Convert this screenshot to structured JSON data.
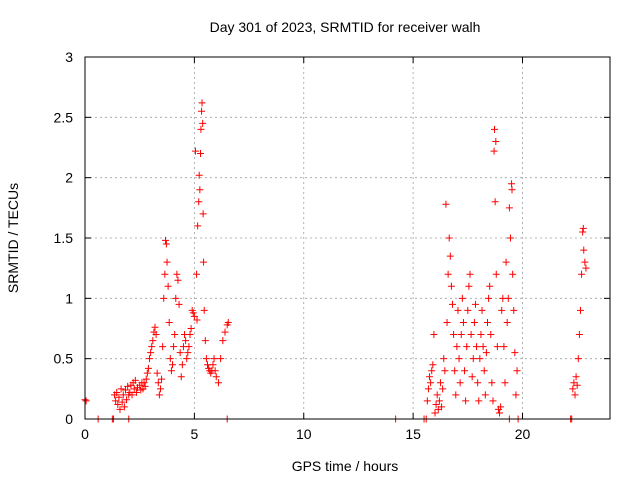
{
  "chart_data": {
    "type": "scatter",
    "title": "Day 301 of 2023, SRMTID for receiver walh",
    "xlabel": "GPS time / hours",
    "ylabel": "SRMTID / TECUs",
    "xlim": [
      0,
      24
    ],
    "ylim": [
      0,
      3
    ],
    "xticks": [
      0,
      5,
      10,
      15,
      20
    ],
    "yticks": [
      0,
      0.5,
      1,
      1.5,
      2,
      2.5,
      3
    ],
    "xtick_labels": [
      "0",
      "5",
      "10",
      "15",
      "20"
    ],
    "ytick_labels": [
      "0",
      "0.5",
      "1",
      "1.5",
      "2",
      "2.5",
      "3"
    ],
    "grid": true,
    "marker": "+",
    "color": "#ff0000",
    "series": [
      {
        "name": "SRMTID",
        "points": [
          [
            0.0,
            0.16
          ],
          [
            0.05,
            0.15
          ],
          [
            0.6,
            0.0
          ],
          [
            1.25,
            0.0
          ],
          [
            1.3,
            0.0
          ],
          [
            1.35,
            0.2
          ],
          [
            1.4,
            0.15
          ],
          [
            1.45,
            0.22
          ],
          [
            1.5,
            0.12
          ],
          [
            1.55,
            0.18
          ],
          [
            1.6,
            0.08
          ],
          [
            1.65,
            0.25
          ],
          [
            1.7,
            0.14
          ],
          [
            1.75,
            0.2
          ],
          [
            1.8,
            0.1
          ],
          [
            1.85,
            0.24
          ],
          [
            1.9,
            0.16
          ],
          [
            1.95,
            0.27
          ],
          [
            2.0,
            0.0
          ],
          [
            2.0,
            0.2
          ],
          [
            2.05,
            0.22
          ],
          [
            2.1,
            0.28
          ],
          [
            2.15,
            0.2
          ],
          [
            2.2,
            0.3
          ],
          [
            2.25,
            0.25
          ],
          [
            2.3,
            0.32
          ],
          [
            2.35,
            0.22
          ],
          [
            2.4,
            0.26
          ],
          [
            2.5,
            0.28
          ],
          [
            2.55,
            0.24
          ],
          [
            2.6,
            0.3
          ],
          [
            2.65,
            0.25
          ],
          [
            2.7,
            0.3
          ],
          [
            2.75,
            0.27
          ],
          [
            2.8,
            0.33
          ],
          [
            2.85,
            0.38
          ],
          [
            2.9,
            0.42
          ],
          [
            2.95,
            0.5
          ],
          [
            3.0,
            0.55
          ],
          [
            3.05,
            0.6
          ],
          [
            3.1,
            0.65
          ],
          [
            3.15,
            0.72
          ],
          [
            3.2,
            0.76
          ],
          [
            3.25,
            0.7
          ],
          [
            3.3,
            0.38
          ],
          [
            3.35,
            0.3
          ],
          [
            3.4,
            0.2
          ],
          [
            3.45,
            0.25
          ],
          [
            3.5,
            0.33
          ],
          [
            3.55,
            0.6
          ],
          [
            3.6,
            1.0
          ],
          [
            3.65,
            1.2
          ],
          [
            3.68,
            1.48
          ],
          [
            3.72,
            1.45
          ],
          [
            3.75,
            1.3
          ],
          [
            3.8,
            1.1
          ],
          [
            3.85,
            0.8
          ],
          [
            3.9,
            0.5
          ],
          [
            3.95,
            0.4
          ],
          [
            4.0,
            0.45
          ],
          [
            4.05,
            0.6
          ],
          [
            4.1,
            0.7
          ],
          [
            4.15,
            1.0
          ],
          [
            4.2,
            1.2
          ],
          [
            4.25,
            1.15
          ],
          [
            4.3,
            0.95
          ],
          [
            4.35,
            0.55
          ],
          [
            4.4,
            0.35
          ],
          [
            4.45,
            0.45
          ],
          [
            4.5,
            0.6
          ],
          [
            4.55,
            0.7
          ],
          [
            4.6,
            0.65
          ],
          [
            4.65,
            0.5
          ],
          [
            4.7,
            0.55
          ],
          [
            4.75,
            0.6
          ],
          [
            4.8,
            0.7
          ],
          [
            4.85,
            0.75
          ],
          [
            4.9,
            0.9
          ],
          [
            4.95,
            0.88
          ],
          [
            5.0,
            0.85
          ],
          [
            5.05,
            2.22
          ],
          [
            5.1,
            1.2
          ],
          [
            5.12,
            0.82
          ],
          [
            5.15,
            1.6
          ],
          [
            5.2,
            1.8
          ],
          [
            5.22,
            2.02
          ],
          [
            5.25,
            1.9
          ],
          [
            5.28,
            2.2
          ],
          [
            5.3,
            2.4
          ],
          [
            5.33,
            2.55
          ],
          [
            5.35,
            2.62
          ],
          [
            5.38,
            2.45
          ],
          [
            5.4,
            1.7
          ],
          [
            5.42,
            1.3
          ],
          [
            5.45,
            0.9
          ],
          [
            5.5,
            0.65
          ],
          [
            5.55,
            0.5
          ],
          [
            5.6,
            0.45
          ],
          [
            5.65,
            0.42
          ],
          [
            5.7,
            0.4
          ],
          [
            5.75,
            0.38
          ],
          [
            5.8,
            0.4
          ],
          [
            5.85,
            0.45
          ],
          [
            5.9,
            0.5
          ],
          [
            5.95,
            0.4
          ],
          [
            6.0,
            0.35
          ],
          [
            6.1,
            0.3
          ],
          [
            6.2,
            0.5
          ],
          [
            6.3,
            0.65
          ],
          [
            6.4,
            0.72
          ],
          [
            6.5,
            0.78
          ],
          [
            6.55,
            0.8
          ],
          [
            6.5,
            0.0
          ],
          [
            14.2,
            0.0
          ],
          [
            15.5,
            0.0
          ],
          [
            15.6,
            0.0
          ],
          [
            15.65,
            0.15
          ],
          [
            15.7,
            0.25
          ],
          [
            15.75,
            0.35
          ],
          [
            15.8,
            0.3
          ],
          [
            15.85,
            0.4
          ],
          [
            15.9,
            0.45
          ],
          [
            15.95,
            0.7
          ],
          [
            16.0,
            0.05
          ],
          [
            16.05,
            0.12
          ],
          [
            16.1,
            0.2
          ],
          [
            16.15,
            0.08
          ],
          [
            16.2,
            0.15
          ],
          [
            16.25,
            0.3
          ],
          [
            16.3,
            0.1
          ],
          [
            16.35,
            0.25
          ],
          [
            16.4,
            0.5
          ],
          [
            16.45,
            0.4
          ],
          [
            16.5,
            1.78
          ],
          [
            16.55,
            0.8
          ],
          [
            16.6,
            1.2
          ],
          [
            16.65,
            1.5
          ],
          [
            16.7,
            1.35
          ],
          [
            16.75,
            1.1
          ],
          [
            16.8,
            0.95
          ],
          [
            16.85,
            0.7
          ],
          [
            16.9,
            0.4
          ],
          [
            16.95,
            0.2
          ],
          [
            17.0,
            0.6
          ],
          [
            17.05,
            0.9
          ],
          [
            17.1,
            0.5
          ],
          [
            17.15,
            0.3
          ],
          [
            17.2,
            0.7
          ],
          [
            17.25,
            1.0
          ],
          [
            17.3,
            0.8
          ],
          [
            17.35,
            0.4
          ],
          [
            17.4,
            0.15
          ],
          [
            17.45,
            0.6
          ],
          [
            17.5,
            0.9
          ],
          [
            17.55,
            1.1
          ],
          [
            17.6,
            1.2
          ],
          [
            17.65,
            0.7
          ],
          [
            17.7,
            0.35
          ],
          [
            17.75,
            0.5
          ],
          [
            17.8,
            0.8
          ],
          [
            17.85,
            0.95
          ],
          [
            17.9,
            0.6
          ],
          [
            17.95,
            0.3
          ],
          [
            18.0,
            0.15
          ],
          [
            18.05,
            0.5
          ],
          [
            18.1,
            0.7
          ],
          [
            18.15,
            0.9
          ],
          [
            18.2,
            0.6
          ],
          [
            18.25,
            0.4
          ],
          [
            18.3,
            0.2
          ],
          [
            18.35,
            0.55
          ],
          [
            18.4,
            0.8
          ],
          [
            18.45,
            1.0
          ],
          [
            18.5,
            1.1
          ],
          [
            18.55,
            0.7
          ],
          [
            18.6,
            0.3
          ],
          [
            18.65,
            0.15
          ],
          [
            18.7,
            2.22
          ],
          [
            18.72,
            2.4
          ],
          [
            18.75,
            1.8
          ],
          [
            18.78,
            2.3
          ],
          [
            18.8,
            1.2
          ],
          [
            18.85,
            0.6
          ],
          [
            18.9,
            0.08
          ],
          [
            18.95,
            0.05
          ],
          [
            19.0,
            0.1
          ],
          [
            19.05,
            0.9
          ],
          [
            19.1,
            1.0
          ],
          [
            19.15,
            0.6
          ],
          [
            19.2,
            0.3
          ],
          [
            19.25,
            1.3
          ],
          [
            19.3,
            0.8
          ],
          [
            19.35,
            1.0
          ],
          [
            19.4,
            1.75
          ],
          [
            19.45,
            1.5
          ],
          [
            19.5,
            1.95
          ],
          [
            19.52,
            1.9
          ],
          [
            19.55,
            1.2
          ],
          [
            19.6,
            0.9
          ],
          [
            19.65,
            0.55
          ],
          [
            19.7,
            0.2
          ],
          [
            19.75,
            0.4
          ],
          [
            19.8,
            0.0
          ],
          [
            19.4,
            0.0
          ],
          [
            22.2,
            0.0
          ],
          [
            22.25,
            0.0
          ],
          [
            22.3,
            0.25
          ],
          [
            22.35,
            0.3
          ],
          [
            22.4,
            0.2
          ],
          [
            22.45,
            0.35
          ],
          [
            22.5,
            0.28
          ],
          [
            22.55,
            0.5
          ],
          [
            22.6,
            0.7
          ],
          [
            22.65,
            0.9
          ],
          [
            22.7,
            1.2
          ],
          [
            22.75,
            1.55
          ],
          [
            22.78,
            1.58
          ],
          [
            22.8,
            1.4
          ],
          [
            22.85,
            1.3
          ],
          [
            22.9,
            1.25
          ]
        ]
      }
    ]
  }
}
